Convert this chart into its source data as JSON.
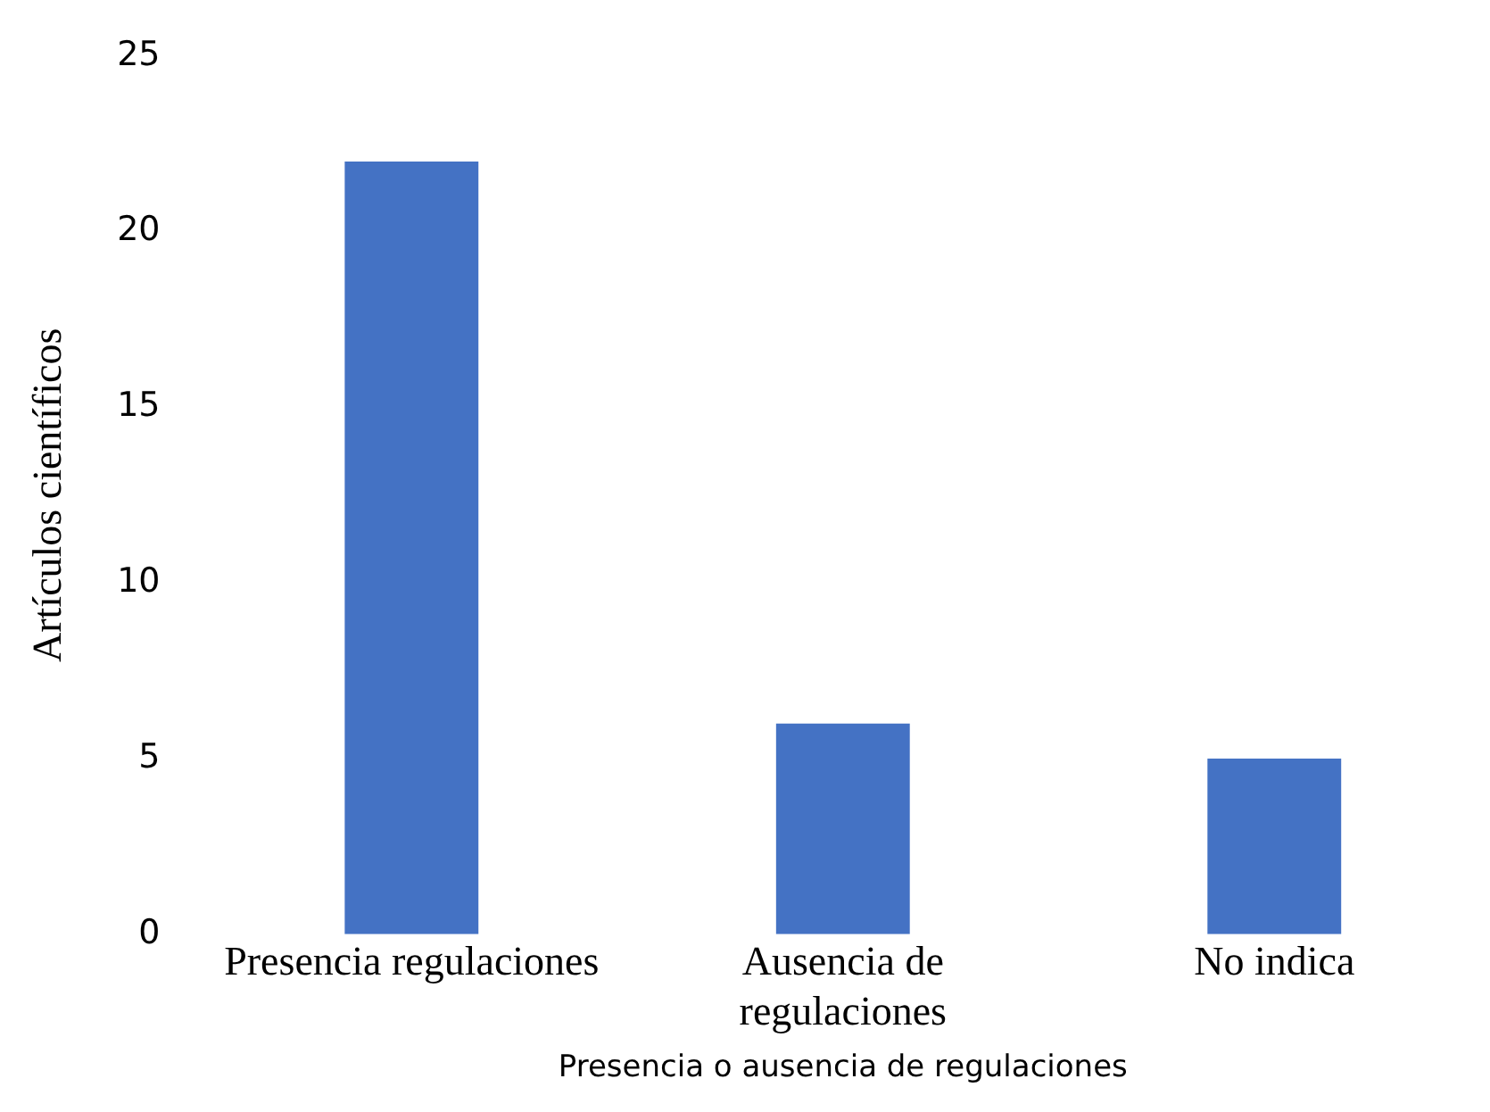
{
  "chart_data": {
    "type": "bar",
    "xlabel": "Presencia o ausencia de regulaciones",
    "ylabel": "Artículos científicos",
    "categories": [
      "Presencia regulaciones",
      "Ausencia de regulaciones",
      "No indica"
    ],
    "values": [
      22,
      6,
      5
    ],
    "color": "#4472c4",
    "ylim": [
      0,
      25
    ],
    "yticks": [
      0,
      5,
      10,
      15,
      20,
      25
    ],
    "grid": false,
    "legend": false
  }
}
